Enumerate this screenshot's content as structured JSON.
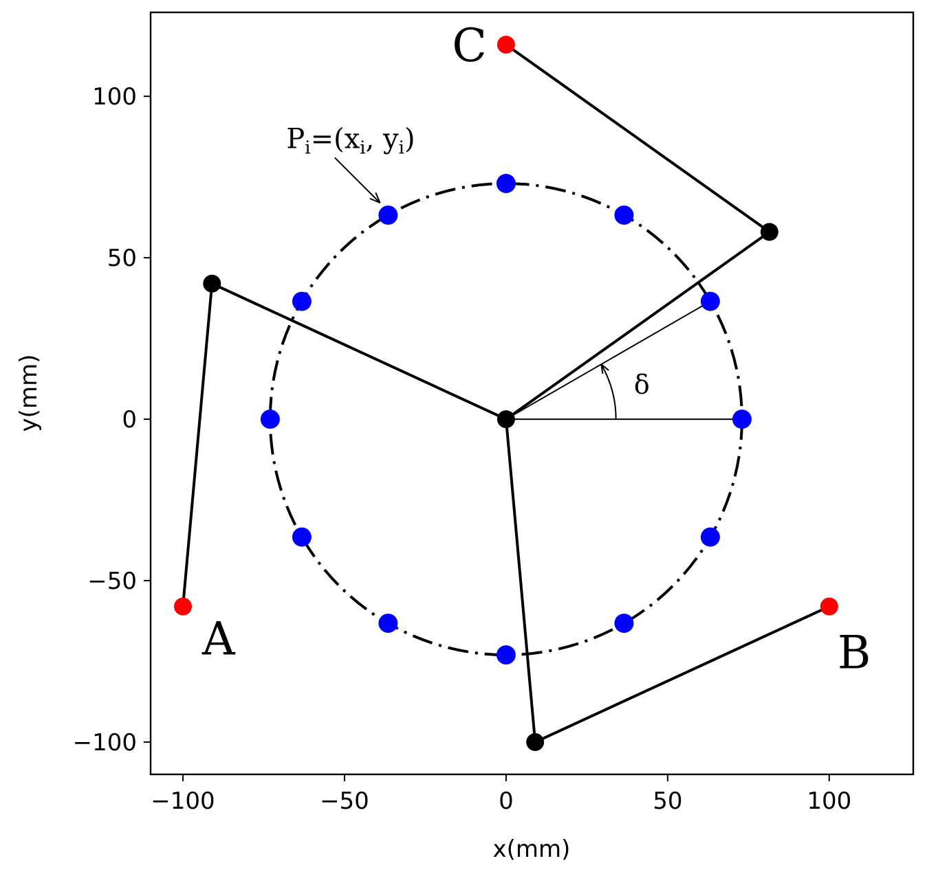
{
  "chart_data": {
    "type": "scatter",
    "xlabel": "x(mm)",
    "ylabel": "y(mm)",
    "xlim": [
      -110,
      126
    ],
    "ylim": [
      -110,
      126
    ],
    "xticks": [
      -100,
      -50,
      0,
      50,
      100
    ],
    "yticks": [
      -100,
      -50,
      0,
      50,
      100
    ],
    "xtick_labels": [
      "−100",
      "−50",
      "0",
      "50",
      "100"
    ],
    "ytick_labels": [
      "−100",
      "−50",
      "0",
      "50",
      "100"
    ],
    "grid": false,
    "circle": {
      "center": [
        0,
        0
      ],
      "radius": 73,
      "style": "dash-dot",
      "color": "#000000"
    },
    "circle_points": {
      "color": "#0000ff",
      "points": [
        [
          73,
          0
        ],
        [
          63.2,
          36.5
        ],
        [
          36.5,
          63.2
        ],
        [
          0,
          73
        ],
        [
          -36.5,
          63.2
        ],
        [
          -63.2,
          36.5
        ],
        [
          -73,
          0
        ],
        [
          -63.2,
          -36.5
        ],
        [
          -36.5,
          -63.2
        ],
        [
          0,
          -73
        ],
        [
          36.5,
          -63.2
        ],
        [
          63.2,
          -36.5
        ]
      ]
    },
    "center_point": {
      "x": 0,
      "y": 0,
      "color": "#000000"
    },
    "legs": [
      {
        "label": "A",
        "base": [
          -100,
          -58
        ],
        "joint": [
          -91,
          42
        ],
        "end": [
          0,
          0
        ]
      },
      {
        "label": "B",
        "base": [
          100,
          -58
        ],
        "joint": [
          9,
          -100
        ],
        "end": [
          0,
          0
        ]
      },
      {
        "label": "C",
        "base": [
          0,
          116
        ],
        "joint": [
          81.5,
          58
        ],
        "end": [
          0,
          0
        ]
      }
    ],
    "base_color": "#ff0000",
    "joint_color": "#000000",
    "angle_annotation": {
      "label": "δ",
      "vertex": [
        0,
        0
      ],
      "ray_end": [
        73,
        0
      ],
      "ray_point": [
        63.2,
        36.5
      ],
      "arc_radius": 34,
      "label_pos": [
        42,
        8
      ]
    },
    "point_annotation": {
      "label_base": "P",
      "label_sub": "i",
      "label_mid": "=(x",
      "label_sub2": "i",
      "label_sep": ", y",
      "label_sub3": "i",
      "label_end": ")",
      "text_pos": [
        -68,
        84
      ],
      "arrow_from": [
        -53,
        81
      ],
      "arrow_to": [
        -39,
        67
      ]
    }
  }
}
